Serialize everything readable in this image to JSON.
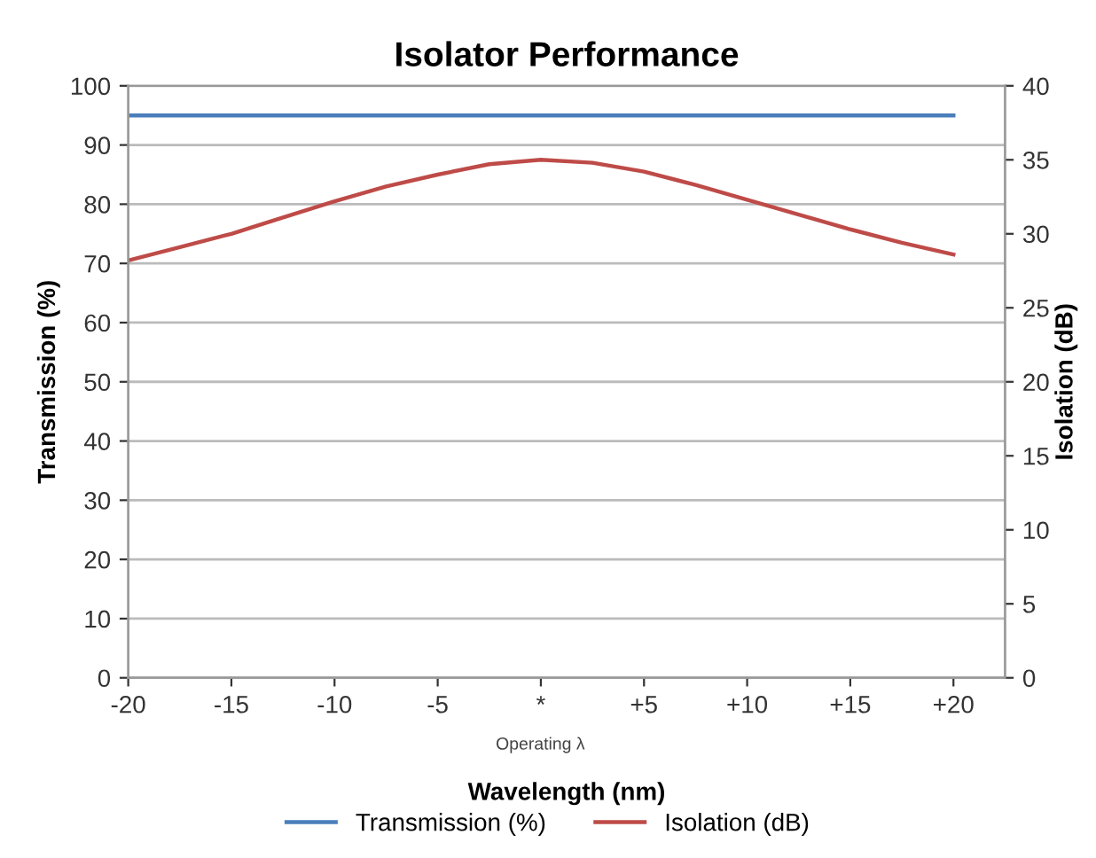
{
  "chart_data": {
    "type": "line",
    "title": "Isolator Performance",
    "xlabel": "Wavelength (nm)",
    "ylabel": "Transmission (%)",
    "y2label": "Isolation (dB)",
    "x": [
      -20,
      -17.5,
      -15,
      -12.5,
      -10,
      -7.5,
      -5,
      -2.5,
      0,
      2.5,
      5,
      7.5,
      10,
      12.5,
      15,
      17.5,
      20
    ],
    "series": [
      {
        "name": "Transmission (%)",
        "color": "#4a7ebb",
        "values": [
          95,
          95,
          95,
          95,
          95,
          95,
          95,
          95,
          95,
          95,
          95,
          95,
          95,
          95,
          95,
          95,
          95
        ]
      },
      {
        "name": "Isolation (dB)",
        "color": "#be4b48",
        "axis": "y2",
        "values": [
          28.2,
          29.1,
          30,
          31.1,
          32.2,
          33.2,
          34,
          34.7,
          35,
          34.8,
          34.2,
          33.3,
          32.3,
          31.3,
          30.3,
          29.4,
          28.6
        ]
      }
    ],
    "xlim": [
      -20,
      22.5
    ],
    "xticks": [
      -20,
      -15,
      -10,
      -5,
      {
        "value": 0,
        "label": "*"
      },
      {
        "value": 5,
        "label": "+5"
      },
      {
        "value": 10,
        "label": "+10"
      },
      {
        "value": 15,
        "label": "+15"
      },
      {
        "value": 20,
        "label": "+20"
      }
    ],
    "ylim": [
      0,
      100
    ],
    "yticks": [
      0,
      10,
      20,
      30,
      40,
      50,
      60,
      70,
      80,
      90,
      100
    ],
    "y2lim": [
      0,
      40
    ],
    "y2ticks": [
      0,
      5,
      10,
      15,
      20,
      25,
      30,
      35,
      40
    ],
    "grid": "y",
    "legend": "bottom",
    "marker": "none",
    "line_style": "solid",
    "annotations": [
      "Operating λ"
    ]
  }
}
